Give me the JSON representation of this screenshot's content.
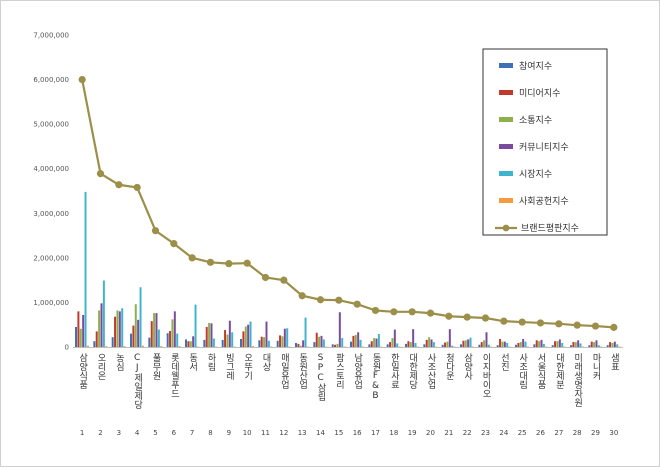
{
  "chart_data": {
    "type": "bar",
    "title": "",
    "xlabel": "",
    "ylabel": "",
    "ylim": [
      0,
      7000000
    ],
    "yticks": [
      "0",
      "1,000,000",
      "2,000,000",
      "3,000,000",
      "4,000,000",
      "5,000,000",
      "6,000,000",
      "7,000,000"
    ],
    "grid": false,
    "legend_position": "top-right",
    "ranks": [
      "1",
      "2",
      "3",
      "4",
      "5",
      "6",
      "7",
      "8",
      "9",
      "10",
      "11",
      "12",
      "13",
      "14",
      "15",
      "16",
      "17",
      "18",
      "19",
      "20",
      "21",
      "22",
      "23",
      "24",
      "25",
      "26",
      "27",
      "28",
      "29",
      "30"
    ],
    "categories": [
      "삼양식품",
      "오리온",
      "농심",
      "CJ제일제당",
      "풀무원",
      "롯데웰푸드",
      "동서",
      "하림",
      "빙그레",
      "오뚜기",
      "대상",
      "매일유업",
      "동원산업",
      "SPC삼립",
      "팜스토리",
      "남양유업",
      "동원F&B",
      "한일사료",
      "대한제당",
      "사조산업",
      "청다운",
      "삼양사",
      "이지바이오",
      "선진",
      "사조대림",
      "서울식품",
      "대한제분",
      "미래생명자원",
      "마니커",
      "샘표"
    ],
    "series": [
      {
        "name": "참여지수",
        "color": "#3f6fb5",
        "values": [
          450000,
          130000,
          220000,
          300000,
          210000,
          310000,
          170000,
          160000,
          160000,
          180000,
          150000,
          140000,
          90000,
          110000,
          60000,
          120000,
          60000,
          60000,
          70000,
          60000,
          50000,
          60000,
          50000,
          40000,
          50000,
          60000,
          40000,
          40000,
          40000,
          40000
        ]
      },
      {
        "name": "미디어지수",
        "color": "#c0392b",
        "values": [
          800000,
          350000,
          680000,
          480000,
          580000,
          360000,
          130000,
          450000,
          380000,
          350000,
          230000,
          260000,
          70000,
          320000,
          50000,
          250000,
          130000,
          110000,
          130000,
          160000,
          100000,
          140000,
          110000,
          180000,
          90000,
          150000,
          130000,
          110000,
          120000,
          110000
        ]
      },
      {
        "name": "소통지수",
        "color": "#8db04a",
        "values": [
          410000,
          820000,
          820000,
          960000,
          760000,
          620000,
          130000,
          540000,
          280000,
          460000,
          220000,
          240000,
          30000,
          230000,
          70000,
          270000,
          200000,
          200000,
          110000,
          220000,
          120000,
          150000,
          150000,
          120000,
          110000,
          130000,
          130000,
          110000,
          110000,
          90000
        ]
      },
      {
        "name": "커뮤니티지수",
        "color": "#7a4b9c",
        "values": [
          720000,
          980000,
          800000,
          610000,
          760000,
          800000,
          240000,
          530000,
          590000,
          500000,
          570000,
          410000,
          150000,
          250000,
          780000,
          330000,
          190000,
          390000,
          400000,
          170000,
          400000,
          170000,
          330000,
          120000,
          180000,
          160000,
          170000,
          150000,
          150000,
          120000
        ]
      },
      {
        "name": "시장지수",
        "color": "#3eb4cd",
        "values": [
          3480000,
          1490000,
          870000,
          1340000,
          390000,
          300000,
          950000,
          190000,
          330000,
          570000,
          140000,
          420000,
          660000,
          170000,
          200000,
          160000,
          290000,
          80000,
          90000,
          110000,
          30000,
          210000,
          50000,
          90000,
          120000,
          70000,
          90000,
          80000,
          40000,
          60000
        ]
      },
      {
        "name": "사회공헌지수",
        "color": "#f39c3d",
        "values": [
          30000,
          20000,
          20000,
          30000,
          20000,
          20000,
          10000,
          10000,
          10000,
          20000,
          10000,
          10000,
          10000,
          10000,
          10000,
          10000,
          10000,
          10000,
          10000,
          10000,
          10000,
          10000,
          10000,
          10000,
          10000,
          10000,
          10000,
          10000,
          10000,
          10000
        ]
      }
    ],
    "line_series": {
      "name": "브랜드평판지수",
      "color": "#9c8f4a",
      "values": [
        6000000,
        3890000,
        3640000,
        3580000,
        2610000,
        2320000,
        2000000,
        1900000,
        1870000,
        1880000,
        1560000,
        1500000,
        1150000,
        1060000,
        1050000,
        960000,
        820000,
        790000,
        790000,
        760000,
        690000,
        670000,
        650000,
        580000,
        560000,
        540000,
        520000,
        490000,
        470000,
        440000
      ]
    }
  }
}
